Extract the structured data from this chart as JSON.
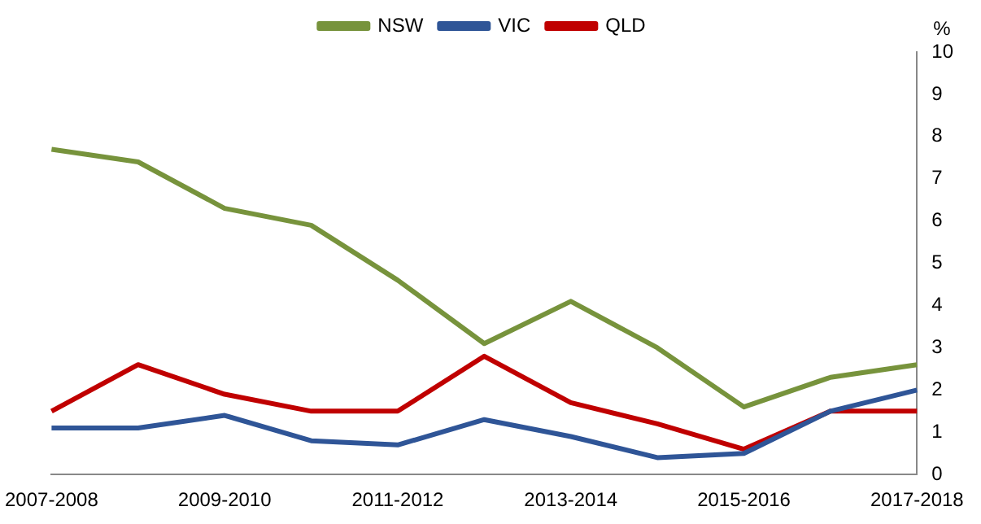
{
  "chart_data": {
    "type": "line",
    "ylabel": "%",
    "categories": [
      "2007-2008",
      null,
      "2009-2010",
      null,
      "2011-2012",
      null,
      "2013-2014",
      null,
      "2015-2016",
      null,
      "2017-2018"
    ],
    "series": [
      {
        "name": "NSW",
        "color": "#77933c",
        "values": [
          7.7,
          7.4,
          6.3,
          5.9,
          4.6,
          3.1,
          4.1,
          3.0,
          1.6,
          2.3,
          2.6
        ]
      },
      {
        "name": "VIC",
        "color": "#2f5597",
        "values": [
          1.1,
          1.1,
          1.4,
          0.8,
          0.7,
          1.3,
          0.9,
          0.4,
          0.5,
          1.5,
          2.0
        ]
      },
      {
        "name": "QLD",
        "color": "#c00000",
        "values": [
          1.5,
          2.6,
          1.9,
          1.5,
          1.5,
          2.8,
          1.7,
          1.2,
          0.6,
          1.5,
          1.5
        ]
      }
    ],
    "ylim": [
      0,
      10
    ],
    "yticks": [
      0,
      1,
      2,
      3,
      4,
      5,
      6,
      7,
      8,
      9,
      10
    ],
    "grid": false,
    "legend": "top",
    "marker": "none"
  }
}
